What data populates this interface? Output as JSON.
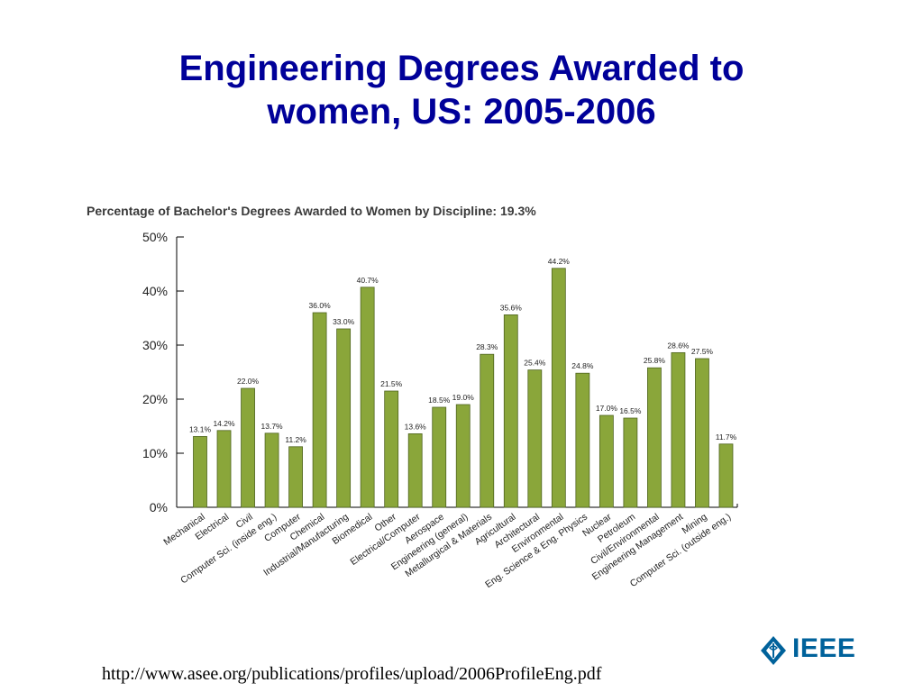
{
  "slide": {
    "title_line1": "Engineering Degrees Awarded to",
    "title_line2": "women, US: 2005-2006",
    "source_url": "http://www.asee.org/publications/profiles/upload/2006ProfileEng.pdf",
    "logo_text": "IEEE"
  },
  "colors": {
    "title": "#000099",
    "bar_fill": "#8AA63A",
    "bar_stroke": "#4F6420",
    "logo": "#00629B"
  },
  "chart_data": {
    "type": "bar",
    "title": "Percentage of Bachelor's Degrees Awarded to Women by Discipline: 19.3%",
    "ylim": [
      0,
      50
    ],
    "yticks": [
      0,
      10,
      20,
      30,
      40,
      50
    ],
    "ytick_labels": [
      "0%",
      "10%",
      "20%",
      "30%",
      "40%",
      "50%"
    ],
    "grid": false,
    "categories": [
      "Mechanical",
      "Electrical",
      "Civil",
      "Computer Sci. (inside eng.)",
      "Computer",
      "Chemical",
      "Industrial/Manufacturing",
      "Biomedical",
      "Other",
      "Electrical/Computer",
      "Aerospace",
      "Engineering (general)",
      "Metallurgical & Materials",
      "Agricultural",
      "Architectural",
      "Environmental",
      "Eng. Science & Eng. Physics",
      "Nuclear",
      "Petroleum",
      "Civil/Environmental",
      "Engineering Management",
      "Mining",
      "Computer Sci. (outside eng.)"
    ],
    "values": [
      13.1,
      14.2,
      22.0,
      13.7,
      11.2,
      36.0,
      33.0,
      40.7,
      21.5,
      13.6,
      18.5,
      19.0,
      28.3,
      35.6,
      25.4,
      44.2,
      24.8,
      17.0,
      16.5,
      25.8,
      28.6,
      27.5,
      11.7
    ],
    "value_labels": [
      "13.1%",
      "14.2%",
      "22.0%",
      "13.7%",
      "11.2%",
      "36.0%",
      "33.0%",
      "40.7%",
      "21.5%",
      "13.6%",
      "18.5%",
      "19.0%",
      "28.3%",
      "35.6%",
      "25.4%",
      "44.2%",
      "24.8%",
      "17.0%",
      "16.5%",
      "25.8%",
      "28.6%",
      "27.5%",
      "11.7%"
    ]
  }
}
